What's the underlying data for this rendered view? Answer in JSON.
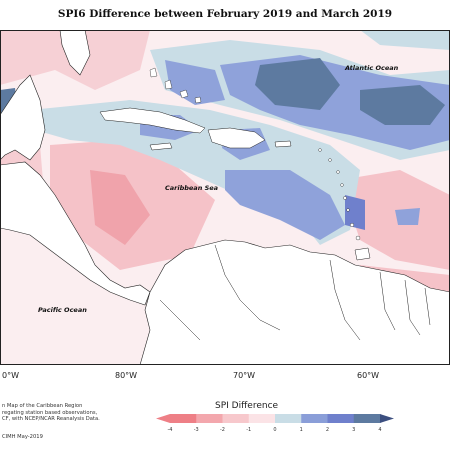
{
  "title": "SPI6 Difference between February 2019 and March 2019",
  "labels": {
    "atlantic": "Atlantic Ocean",
    "caribbean": "Caribbean Sea",
    "pacific": "Pacific Ocean"
  },
  "longitudes": [
    "0°W",
    "80°W",
    "70°W",
    "60°W"
  ],
  "caption_lines": [
    "n Map of the Caribbean Region",
    "regating station based observations,",
    "CF, with NCEP/NCAR Reanalysis Data."
  ],
  "credit": "CIMH May-2019",
  "legend": {
    "title": "SPI Difference",
    "ticks": [
      "-4",
      "-3",
      "-2",
      "-1",
      "0",
      "1",
      "2",
      "3",
      "4"
    ],
    "colors": [
      "#ee7f86",
      "#f3a7ad",
      "#f7c8cc",
      "#fbe3e6",
      "#c9dde6",
      "#8a9ed8",
      "#6f80cc",
      "#5d7aa0",
      "#3c4f80"
    ]
  }
}
